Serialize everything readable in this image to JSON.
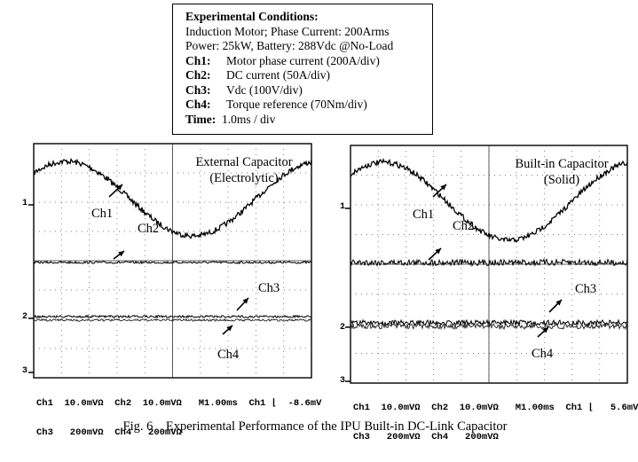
{
  "conditions": {
    "heading": "Experimental Conditions:",
    "line1": "Induction Motor;     Phase Current: 200Arms",
    "line2": "Power: 25kW,    Battery: 288Vdc @No-Load",
    "channels": [
      {
        "label": "Ch1:",
        "text": "Motor phase current (200A/div)"
      },
      {
        "label": "Ch2:",
        "text": "DC current (50A/div)"
      },
      {
        "label": "Ch3:",
        "text": "Vdc (100V/div)"
      },
      {
        "label": "Ch4:",
        "text": "Torque reference (70Nm/div)"
      },
      {
        "label": "Time:",
        "text": "  1.0ms / div"
      }
    ]
  },
  "scopes": [
    {
      "title_line1": "External Capacitor",
      "title_line2": "(Electrolytic)",
      "ch1": "Ch1",
      "ch2": "Ch2",
      "ch3": "Ch3",
      "ch4": "Ch4",
      "marker1": "1",
      "marker2": "2",
      "marker3": "3",
      "footer_line1": "Ch1  10.0mVΩ  Ch2  10.0mVΩ   M1.00ms  Ch1 ⌊  -8.6mV",
      "footer_line2": "Ch3   200mVΩ  Ch4   200mVΩ"
    },
    {
      "title_line1": "Built-in Capacitor",
      "title_line2": "(Solid)",
      "ch1": "Ch1",
      "ch2": "Ch2",
      "ch3": "Ch3",
      "ch4": "Ch4",
      "marker1": "1",
      "marker2": "2",
      "marker3": "3",
      "footer_line1": "Ch1  10.0mVΩ  Ch2  10.0mVΩ   M1.00ms  Ch1 ⌊   5.6mV",
      "footer_line2": "Ch3   200mVΩ  Ch4   200mVΩ"
    }
  ],
  "caption": "Fig. 6    Experimental Performance of the IPU Built-in DC-Link Capacitor"
}
